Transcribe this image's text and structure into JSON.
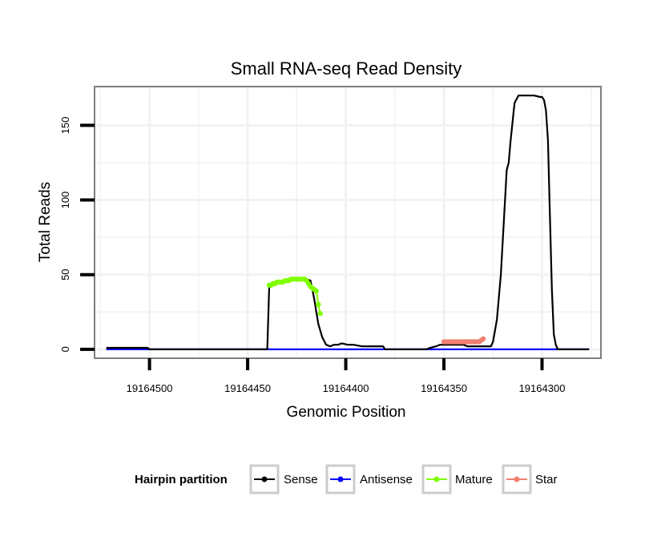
{
  "chart_data": {
    "type": "line",
    "title": "Small RNA-seq Read Density",
    "xlabel": "Genomic Position",
    "ylabel": "Total Reads",
    "x_reversed": true,
    "xlim": [
      19164528,
      19164270
    ],
    "ylim": [
      -6,
      176
    ],
    "x_ticks": [
      19164500,
      19164450,
      19164400,
      19164350,
      19164300
    ],
    "x_tick_labels": [
      "19164500",
      "19164450",
      "19164400",
      "19164350",
      "19164300"
    ],
    "y_ticks": [
      0,
      50,
      100,
      150
    ],
    "y_tick_labels": [
      "0",
      "50",
      "100",
      "150"
    ],
    "grid": true,
    "legend": {
      "title": "Hairpin partition",
      "placement": "bottom",
      "entries": [
        "Sense",
        "Antisense",
        "Mature",
        "Star"
      ]
    },
    "colors": {
      "Sense": "#000000",
      "Antisense": "#0000ff",
      "Mature": "#7fff00",
      "Star": "#f08070",
      "grid": "#f2f2f2",
      "panel_border": "#7f7f7f"
    },
    "series": [
      {
        "name": "Sense",
        "style": "line",
        "x": [
          19164522,
          19164501,
          19164500,
          19164440,
          19164439,
          19164434,
          19164424,
          19164420,
          19164418,
          19164417,
          19164416,
          19164415,
          19164414,
          19164412,
          19164410,
          19164408,
          19164406,
          19164404,
          19164402,
          19164399,
          19164396,
          19164392,
          19164381,
          19164380,
          19164359,
          19164357,
          19164354,
          19164352,
          19164349,
          19164345,
          19164342,
          19164340,
          19164338,
          19164326,
          19164325,
          19164323,
          19164321,
          19164318,
          19164317,
          19164316,
          19164314,
          19164312,
          19164310,
          19164304,
          19164301,
          19164300,
          19164299,
          19164298,
          19164297,
          19164296,
          19164295,
          19164294,
          19164293,
          19164292,
          19164276
        ],
        "y": [
          1,
          1,
          0,
          0,
          42,
          45,
          47,
          47,
          46,
          40,
          33,
          25,
          17,
          8,
          3,
          2,
          3,
          3,
          4,
          3,
          3,
          2,
          2,
          0,
          0,
          1,
          2,
          3,
          3,
          3,
          3,
          3,
          2,
          2,
          5,
          20,
          50,
          120,
          125,
          140,
          165,
          170,
          170,
          170,
          169,
          169,
          167,
          160,
          140,
          90,
          40,
          10,
          3,
          0,
          0
        ]
      },
      {
        "name": "Antisense",
        "style": "line",
        "x": [
          19164522,
          19164276
        ],
        "y": [
          0,
          0
        ]
      },
      {
        "name": "Mature",
        "style": "points",
        "x": [
          19164439,
          19164438,
          19164437,
          19164436,
          19164435,
          19164434,
          19164433,
          19164432,
          19164431,
          19164430,
          19164429,
          19164428,
          19164427,
          19164426,
          19164425,
          19164424,
          19164423,
          19164422,
          19164421,
          19164420,
          19164419,
          19164418,
          19164417,
          19164416,
          19164415,
          19164414,
          19164413
        ],
        "y": [
          43,
          43,
          44,
          44,
          45,
          45,
          45,
          45,
          46,
          46,
          46,
          47,
          47,
          47,
          47,
          47,
          47,
          47,
          47,
          46,
          44,
          42,
          41,
          40,
          39,
          30,
          24
        ]
      },
      {
        "name": "Star",
        "style": "points",
        "x": [
          19164350,
          19164349,
          19164348,
          19164347,
          19164346,
          19164345,
          19164344,
          19164343,
          19164342,
          19164341,
          19164340,
          19164339,
          19164338,
          19164337,
          19164336,
          19164335,
          19164334,
          19164333,
          19164332,
          19164331,
          19164330
        ],
        "y": [
          5,
          5,
          5,
          5,
          5,
          5,
          5,
          5,
          5,
          5,
          5,
          5,
          5,
          5,
          5,
          5,
          5,
          5,
          5,
          6,
          7
        ]
      }
    ]
  }
}
